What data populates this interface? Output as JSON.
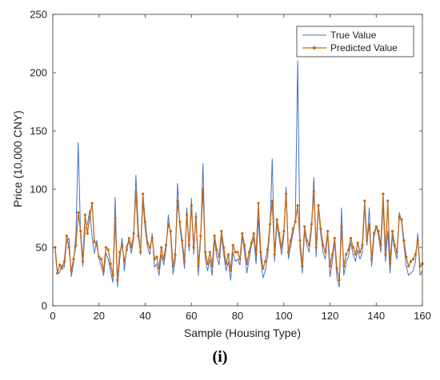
{
  "chart_data": {
    "type": "line",
    "title": "",
    "xlabel": "Sample (Housing Type)",
    "ylabel": "Price (10,000 CNY)",
    "xlim": [
      0,
      160
    ],
    "ylim": [
      0,
      250
    ],
    "xticks": [
      "0",
      "20",
      "40",
      "60",
      "80",
      "100",
      "120",
      "140",
      "160"
    ],
    "yticks": [
      "0",
      "50",
      "100",
      "150",
      "200",
      "250"
    ],
    "grid": false,
    "legend_position": "top-right",
    "panel_label": "(i)",
    "series": [
      {
        "name": "True Value",
        "color": "#4472c4",
        "marker": "none",
        "x": [
          1,
          2,
          3,
          4,
          5,
          6,
          7,
          8,
          9,
          10,
          11,
          12,
          13,
          14,
          15,
          16,
          17,
          18,
          19,
          20,
          21,
          22,
          23,
          24,
          25,
          26,
          27,
          28,
          29,
          30,
          31,
          32,
          33,
          34,
          35,
          36,
          37,
          38,
          39,
          40,
          41,
          42,
          43,
          44,
          45,
          46,
          47,
          48,
          49,
          50,
          51,
          52,
          53,
          54,
          55,
          56,
          57,
          58,
          59,
          60,
          61,
          62,
          63,
          64,
          65,
          66,
          67,
          68,
          69,
          70,
          71,
          72,
          73,
          74,
          75,
          76,
          77,
          78,
          79,
          80,
          81,
          82,
          83,
          84,
          85,
          86,
          87,
          88,
          89,
          90,
          91,
          92,
          93,
          94,
          95,
          96,
          97,
          98,
          99,
          100,
          101,
          102,
          103,
          104,
          105,
          106,
          107,
          108,
          109,
          110,
          111,
          112,
          113,
          114,
          115,
          116,
          117,
          118,
          119,
          120,
          121,
          122,
          123,
          124,
          125,
          126,
          127,
          128,
          129,
          130,
          131,
          132,
          133,
          134,
          135,
          136,
          137,
          138,
          139,
          140,
          141,
          142,
          143,
          144,
          145,
          146,
          147,
          148,
          149,
          150,
          151,
          152,
          153,
          154,
          155,
          156,
          157,
          158,
          159,
          160
        ],
        "values": [
          47,
          27,
          29,
          35,
          33,
          55,
          58,
          25,
          37,
          62,
          140,
          60,
          34,
          66,
          70,
          82,
          60,
          45,
          56,
          40,
          34,
          26,
          45,
          40,
          30,
          20,
          93,
          16,
          40,
          58,
          30,
          52,
          55,
          45,
          58,
          112,
          67,
          44,
          90,
          66,
          50,
          44,
          62,
          33,
          36,
          26,
          44,
          35,
          48,
          78,
          60,
          27,
          38,
          105,
          68,
          52,
          32,
          84,
          47,
          92,
          44,
          80,
          26,
          58,
          122,
          40,
          30,
          40,
          26,
          56,
          42,
          35,
          60,
          44,
          30,
          38,
          22,
          46,
          38,
          40,
          35,
          60,
          46,
          28,
          40,
          52,
          58,
          36,
          76,
          40,
          24,
          30,
          42,
          66,
          126,
          38,
          70,
          58,
          44,
          60,
          102,
          40,
          52,
          62,
          74,
          210,
          50,
          28,
          64,
          52,
          46,
          66,
          110,
          42,
          84,
          62,
          46,
          40,
          62,
          25,
          38,
          55,
          24,
          16,
          84,
          26,
          38,
          42,
          54,
          44,
          38,
          48,
          40,
          46,
          86,
          52,
          84,
          34,
          58,
          68,
          60,
          46,
          88,
          38,
          64,
          28,
          60,
          48,
          40,
          80,
          72,
          52,
          34,
          26,
          28,
          30,
          38,
          62,
          26,
          30
        ]
      },
      {
        "name": "Predicted Value",
        "color": "#c46a1a",
        "marker": "dot",
        "x": [
          1,
          2,
          3,
          4,
          5,
          6,
          7,
          8,
          9,
          10,
          11,
          12,
          13,
          14,
          15,
          16,
          17,
          18,
          19,
          20,
          21,
          22,
          23,
          24,
          25,
          26,
          27,
          28,
          29,
          30,
          31,
          32,
          33,
          34,
          35,
          36,
          37,
          38,
          39,
          40,
          41,
          42,
          43,
          44,
          45,
          46,
          47,
          48,
          49,
          50,
          51,
          52,
          53,
          54,
          55,
          56,
          57,
          58,
          59,
          60,
          61,
          62,
          63,
          64,
          65,
          66,
          67,
          68,
          69,
          70,
          71,
          72,
          73,
          74,
          75,
          76,
          77,
          78,
          79,
          80,
          81,
          82,
          83,
          84,
          85,
          86,
          87,
          88,
          89,
          90,
          91,
          92,
          93,
          94,
          95,
          96,
          97,
          98,
          99,
          100,
          101,
          102,
          103,
          104,
          105,
          106,
          107,
          108,
          109,
          110,
          111,
          112,
          113,
          114,
          115,
          116,
          117,
          118,
          119,
          120,
          121,
          122,
          123,
          124,
          125,
          126,
          127,
          128,
          129,
          130,
          131,
          132,
          133,
          134,
          135,
          136,
          137,
          138,
          139,
          140,
          141,
          142,
          143,
          144,
          145,
          146,
          147,
          148,
          149,
          150,
          151,
          152,
          153,
          154,
          155,
          156,
          157,
          158,
          159,
          160
        ],
        "values": [
          50,
          28,
          35,
          32,
          38,
          60,
          50,
          30,
          40,
          52,
          80,
          64,
          38,
          78,
          62,
          76,
          88,
          55,
          52,
          42,
          40,
          30,
          50,
          48,
          36,
          26,
          75,
          22,
          46,
          52,
          38,
          48,
          58,
          50,
          62,
          98,
          60,
          46,
          96,
          72,
          54,
          50,
          58,
          40,
          42,
          32,
          50,
          40,
          52,
          70,
          64,
          34,
          44,
          90,
          72,
          56,
          38,
          78,
          52,
          86,
          50,
          76,
          34,
          60,
          100,
          46,
          36,
          46,
          34,
          60,
          48,
          42,
          64,
          50,
          36,
          44,
          30,
          52,
          46,
          46,
          40,
          62,
          52,
          36,
          46,
          54,
          62,
          44,
          88,
          46,
          32,
          38,
          48,
          70,
          90,
          44,
          74,
          62,
          50,
          64,
          96,
          46,
          56,
          66,
          72,
          86,
          56,
          34,
          68,
          56,
          52,
          70,
          98,
          50,
          86,
          66,
          52,
          46,
          64,
          34,
          44,
          58,
          32,
          22,
          68,
          34,
          44,
          48,
          58,
          50,
          44,
          54,
          46,
          52,
          90,
          56,
          70,
          40,
          62,
          68,
          64,
          52,
          96,
          44,
          90,
          36,
          64,
          52,
          46,
          76,
          74,
          56,
          42,
          34,
          38,
          40,
          44,
          56,
          34,
          36
        ]
      }
    ]
  }
}
